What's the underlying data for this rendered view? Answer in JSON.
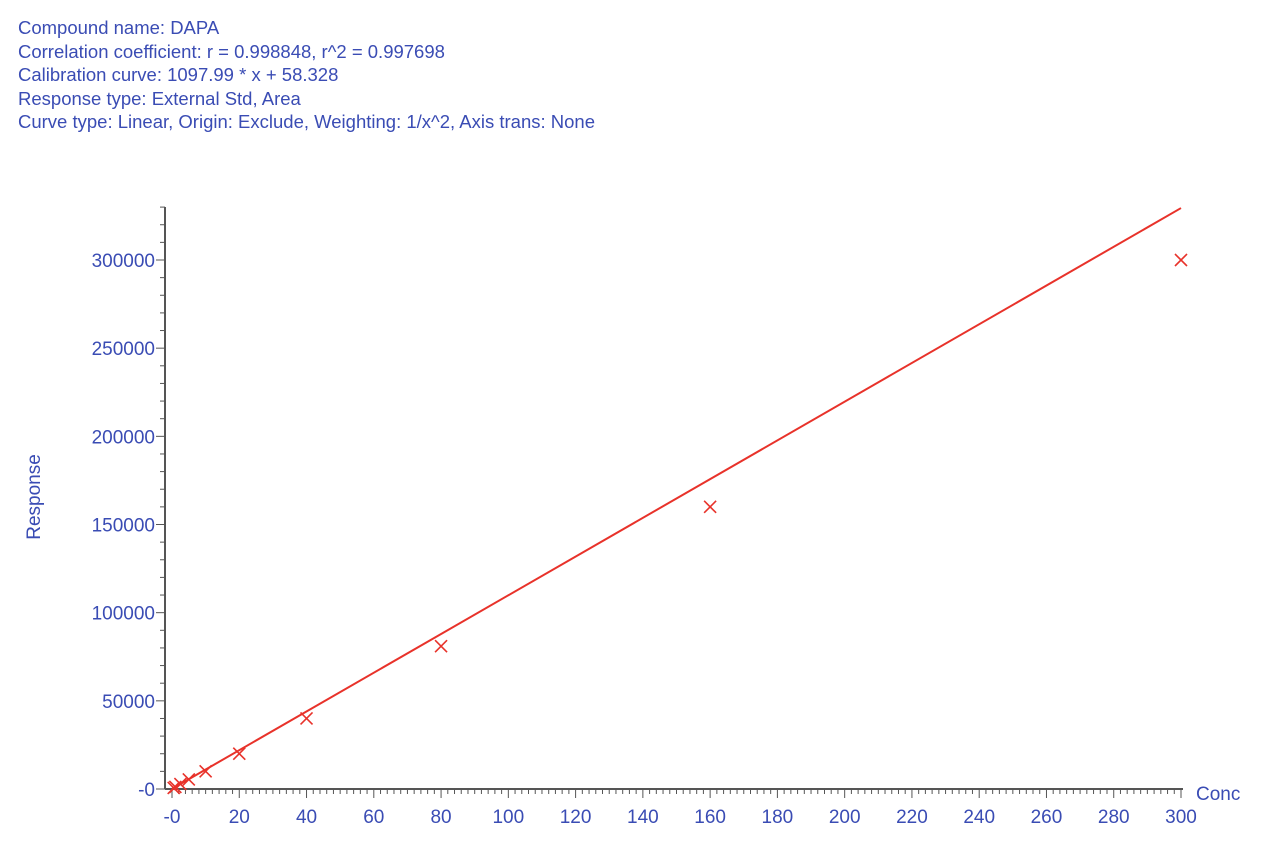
{
  "header": {
    "compound": "Compound name: DAPA",
    "correlation": "Correlation coefficient: r = 0.998848, r^2 = 0.997698",
    "calibration": "Calibration curve: 1097.99 * x + 58.328",
    "response_type": "Response type: External Std, Area",
    "curve_type": "Curve type: Linear, Origin: Exclude, Weighting: 1/x^2, Axis trans: None"
  },
  "colors": {
    "axis": "#3a4cb4",
    "series": "#e8322a"
  },
  "chart_data": {
    "type": "scatter",
    "title": "",
    "xlabel": "Conc",
    "ylabel": "Response",
    "xlim": [
      0,
      300
    ],
    "ylim": [
      0,
      330000
    ],
    "x_ticks": [
      0,
      20,
      40,
      60,
      80,
      100,
      120,
      140,
      160,
      180,
      200,
      220,
      240,
      260,
      280,
      300
    ],
    "x_tick_labels": [
      "-0",
      "20",
      "40",
      "60",
      "80",
      "100",
      "120",
      "140",
      "160",
      "180",
      "200",
      "220",
      "240",
      "260",
      "280",
      "300"
    ],
    "y_ticks": [
      0,
      50000,
      100000,
      150000,
      200000,
      250000,
      300000
    ],
    "y_tick_labels": [
      "-0",
      "50000",
      "100000",
      "150000",
      "200000",
      "250000",
      "300000"
    ],
    "series": [
      {
        "marker": "x",
        "x": [
          0.5,
          1,
          2.5,
          5,
          10,
          20,
          40,
          80,
          160,
          300
        ],
        "y": [
          600,
          1150,
          2800,
          5400,
          10000,
          20000,
          40000,
          81000,
          160000,
          300000
        ]
      }
    ],
    "fit_line": {
      "slope": 1097.99,
      "intercept": 58.328,
      "x_start": 0,
      "x_end": 300
    }
  }
}
